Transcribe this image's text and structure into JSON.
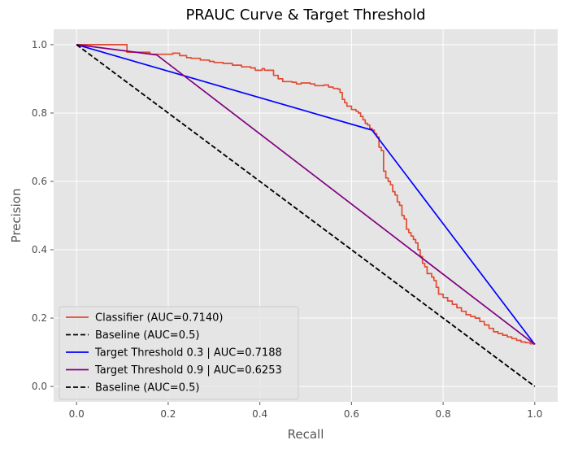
{
  "chart_data": {
    "type": "line",
    "title": "PRAUC Curve & Target Threshold",
    "xlabel": "Recall",
    "ylabel": "Precision",
    "xlim": [
      -0.05,
      1.05
    ],
    "ylim": [
      -0.045,
      1.045
    ],
    "xticks": [
      0.0,
      0.2,
      0.4,
      0.6,
      0.8,
      1.0
    ],
    "yticks": [
      0.0,
      0.2,
      0.4,
      0.6,
      0.8,
      1.0
    ],
    "xtick_labels": [
      "0.0",
      "0.2",
      "0.4",
      "0.6",
      "0.8",
      "1.0"
    ],
    "ytick_labels": [
      "0.0",
      "0.2",
      "0.4",
      "0.6",
      "0.8",
      "1.0"
    ],
    "grid": true,
    "style": "ggplot",
    "legend_position": "lower-left",
    "series": [
      {
        "name": "Classifier (AUC=0.7140)",
        "color": "#e24a33",
        "dash": "solid",
        "step": true,
        "x": [
          0.0,
          0.11,
          0.11,
          0.155,
          0.16,
          0.19,
          0.21,
          0.225,
          0.24,
          0.25,
          0.27,
          0.29,
          0.3,
          0.32,
          0.34,
          0.36,
          0.38,
          0.39,
          0.405,
          0.41,
          0.43,
          0.44,
          0.45,
          0.47,
          0.48,
          0.49,
          0.51,
          0.52,
          0.54,
          0.55,
          0.56,
          0.57,
          0.575,
          0.58,
          0.585,
          0.59,
          0.6,
          0.61,
          0.615,
          0.62,
          0.625,
          0.63,
          0.635,
          0.64,
          0.645,
          0.65,
          0.655,
          0.66,
          0.665,
          0.67,
          0.675,
          0.68,
          0.685,
          0.69,
          0.695,
          0.7,
          0.705,
          0.71,
          0.715,
          0.72,
          0.725,
          0.73,
          0.735,
          0.74,
          0.745,
          0.75,
          0.755,
          0.76,
          0.765,
          0.77,
          0.775,
          0.78,
          0.785,
          0.79,
          0.8,
          0.81,
          0.82,
          0.83,
          0.84,
          0.85,
          0.86,
          0.87,
          0.88,
          0.89,
          0.9,
          0.91,
          0.92,
          0.93,
          0.94,
          0.95,
          0.96,
          0.97,
          0.98,
          0.99,
          1.0
        ],
        "y": [
          1.0,
          1.0,
          0.978,
          0.978,
          0.972,
          0.972,
          0.975,
          0.968,
          0.962,
          0.96,
          0.955,
          0.951,
          0.948,
          0.945,
          0.94,
          0.935,
          0.932,
          0.925,
          0.93,
          0.925,
          0.91,
          0.9,
          0.892,
          0.89,
          0.885,
          0.888,
          0.885,
          0.88,
          0.882,
          0.876,
          0.872,
          0.87,
          0.86,
          0.84,
          0.83,
          0.82,
          0.81,
          0.805,
          0.8,
          0.79,
          0.78,
          0.77,
          0.765,
          0.755,
          0.75,
          0.74,
          0.73,
          0.7,
          0.69,
          0.63,
          0.61,
          0.6,
          0.59,
          0.57,
          0.56,
          0.54,
          0.53,
          0.5,
          0.49,
          0.46,
          0.45,
          0.44,
          0.43,
          0.42,
          0.4,
          0.38,
          0.36,
          0.35,
          0.33,
          0.33,
          0.32,
          0.31,
          0.29,
          0.27,
          0.26,
          0.25,
          0.24,
          0.23,
          0.22,
          0.21,
          0.205,
          0.2,
          0.19,
          0.18,
          0.17,
          0.16,
          0.155,
          0.15,
          0.145,
          0.14,
          0.135,
          0.13,
          0.128,
          0.125,
          0.123
        ]
      },
      {
        "name": "Baseline  (AUC=0.5)",
        "color": "#000000",
        "dash": "dashed",
        "x": [
          0.0,
          1.0
        ],
        "y": [
          1.0,
          0.0
        ]
      },
      {
        "name": "Target Threshold 0.3 | AUC=0.7188",
        "color": "#0000ff",
        "dash": "solid",
        "x": [
          0.0,
          0.645,
          1.0
        ],
        "y": [
          1.0,
          0.75,
          0.123
        ]
      },
      {
        "name": "Target Threshold 0.9 | AUC=0.6253",
        "color": "#800080",
        "dash": "solid",
        "x": [
          0.0,
          0.175,
          1.0
        ],
        "y": [
          1.0,
          0.97,
          0.123
        ]
      },
      {
        "name": "Baseline  (AUC=0.5)",
        "color": "#000000",
        "dash": "dashed",
        "x": [
          0.0,
          1.0
        ],
        "y": [
          1.0,
          0.0
        ]
      }
    ]
  }
}
